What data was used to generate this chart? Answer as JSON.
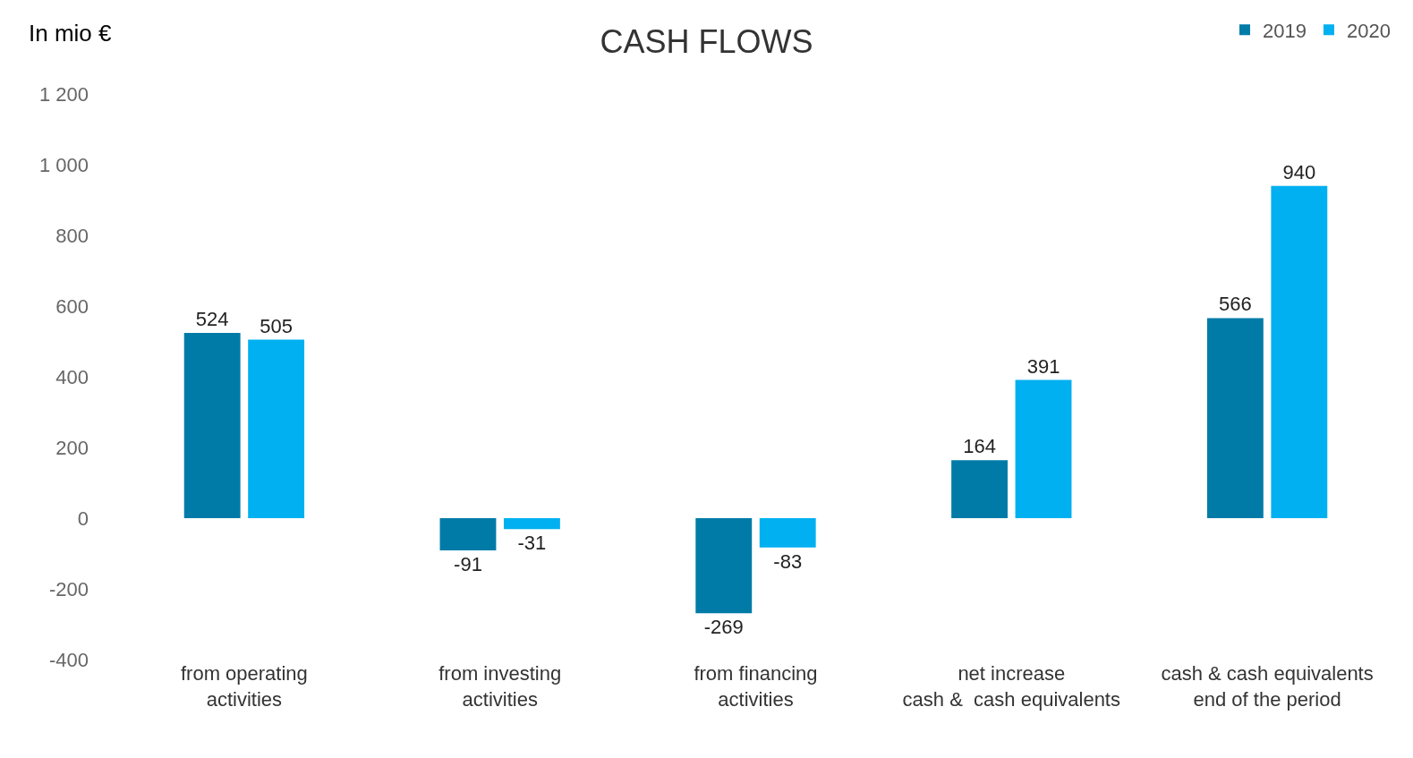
{
  "chart_data": {
    "type": "bar",
    "title": "CASH FLOWS",
    "ylabel": "In mio €",
    "categories": [
      "from operating\nactivities",
      "from investing\nactivities",
      "from financing\nactivities",
      "net increase\ncash &  cash equivalents",
      "cash & cash equivalents\nend of the period"
    ],
    "series": [
      {
        "name": "2019",
        "color": "#007ba7",
        "values": [
          524,
          -91,
          -269,
          164,
          566
        ]
      },
      {
        "name": "2020",
        "color": "#00b0f0",
        "values": [
          505,
          -31,
          -83,
          391,
          940
        ]
      }
    ],
    "ylim": [
      -400,
      1200
    ],
    "yticks": [
      {
        "value": -400,
        "label": "-400"
      },
      {
        "value": -200,
        "label": "-200"
      },
      0,
      200,
      400,
      600,
      800,
      {
        "value": 1000,
        "label": "1 000"
      },
      {
        "value": 1200,
        "label": "1 200"
      }
    ],
    "data_labels": true,
    "grid": false,
    "legend": "top right"
  }
}
